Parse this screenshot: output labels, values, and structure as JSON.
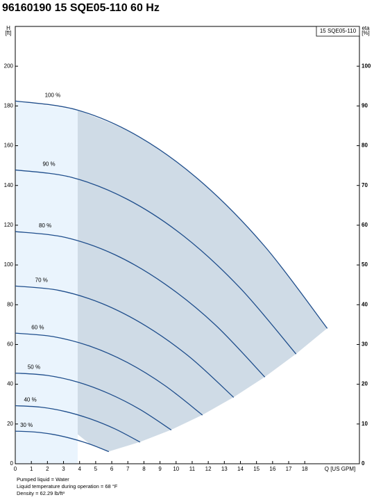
{
  "chart_data": {
    "type": "line",
    "title": "96160190 15 SQE05-110 60 Hz",
    "ylabel": [
      "H",
      "[ft]"
    ],
    "y2label": [
      "eta",
      "[%]"
    ],
    "xlabel": "Q [US GPM]",
    "legend": "15 SQE05-110",
    "legend_position": "upper right",
    "notes": [
      "Pumped liquid = Water",
      "Liquid temperature during operation = 68 °F",
      "Density = 62.29 lb/ft³"
    ],
    "xlim": [
      0,
      21.4
    ],
    "ylim": [
      0,
      220
    ],
    "y2lim": [
      0,
      110
    ],
    "xticks": [
      0,
      1,
      2,
      3,
      4,
      5,
      6,
      7,
      8,
      9,
      10,
      11,
      12,
      13,
      14,
      15,
      16,
      17,
      18
    ],
    "yticks": [
      0,
      20,
      40,
      60,
      80,
      100,
      120,
      140,
      160,
      180,
      200
    ],
    "y2ticks": [
      0,
      10,
      20,
      30,
      40,
      50,
      60,
      70,
      80,
      90,
      100
    ],
    "grid": false,
    "color": "#1f4e8c",
    "series": [
      {
        "name": "100 %",
        "x": [
          0,
          3.88,
          7.76,
          11.64,
          15.52,
          19.4
        ],
        "values": [
          182.5,
          177.9,
          164.2,
          141.3,
          109.3,
          68.1
        ]
      },
      {
        "name": "90 %",
        "x": [
          0,
          3.49,
          6.98,
          10.48,
          13.97,
          17.46
        ],
        "values": [
          147.8,
          144.1,
          133.0,
          114.5,
          88.5,
          55.2
        ]
      },
      {
        "name": "80 %",
        "x": [
          0,
          3.1,
          6.21,
          9.31,
          12.42,
          15.52
        ],
        "values": [
          116.8,
          113.9,
          105.1,
          90.4,
          70.0,
          43.6
        ]
      },
      {
        "name": "70 %",
        "x": [
          0,
          2.72,
          5.43,
          8.15,
          10.86,
          13.58
        ],
        "values": [
          89.4,
          87.2,
          80.5,
          69.2,
          53.6,
          33.4
        ]
      },
      {
        "name": "60 %",
        "x": [
          0,
          2.33,
          4.66,
          6.98,
          9.31,
          11.64
        ],
        "values": [
          65.7,
          64.0,
          59.1,
          50.9,
          39.3,
          24.5
        ]
      },
      {
        "name": "50 %",
        "x": [
          0,
          1.94,
          3.88,
          5.82,
          7.76,
          9.7
        ],
        "values": [
          45.6,
          44.5,
          41.1,
          35.3,
          27.3,
          17.0
        ]
      },
      {
        "name": "40 %",
        "x": [
          0,
          1.55,
          3.1,
          4.66,
          6.21,
          7.76
        ],
        "values": [
          29.2,
          28.5,
          26.3,
          22.6,
          17.5,
          10.9
        ]
      },
      {
        "name": "30 %",
        "x": [
          0,
          1.16,
          2.33,
          3.49,
          4.66,
          5.82
        ],
        "values": [
          16.4,
          16.0,
          14.8,
          12.7,
          9.8,
          6.1
        ]
      }
    ]
  }
}
